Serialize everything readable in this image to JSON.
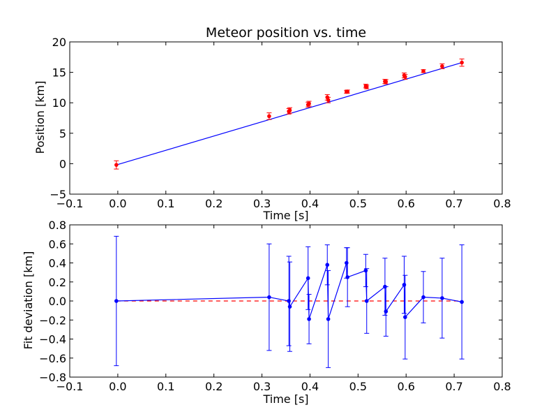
{
  "chart_data": [
    {
      "type": "line",
      "title": "Meteor position vs. time",
      "xlabel": "Time [s]",
      "ylabel": "Position [km]",
      "xlim": [
        -0.1,
        0.8
      ],
      "ylim": [
        -5,
        20
      ],
      "xticks": [
        "−0.1",
        "0.0",
        "0.1",
        "0.2",
        "0.3",
        "0.4",
        "0.5",
        "0.6",
        "0.7",
        "0.8"
      ],
      "xtick_values": [
        -0.1,
        0.0,
        0.1,
        0.2,
        0.3,
        0.4,
        0.5,
        0.6,
        0.7,
        0.8
      ],
      "yticks": [
        "−5",
        "0",
        "5",
        "10",
        "15",
        "20"
      ],
      "ytick_values": [
        -5,
        0,
        5,
        10,
        15,
        20
      ],
      "grid": false,
      "series": [
        {
          "kind": "fit_line",
          "color": "#0000ff",
          "points": [
            [
              -0.003,
              -0.2
            ],
            [
              0.716,
              16.6
            ]
          ]
        },
        {
          "kind": "errorbar",
          "color": "#ff0000",
          "x": [
            -0.003,
            0.315,
            0.356,
            0.358,
            0.396,
            0.398,
            0.436,
            0.438,
            0.476,
            0.478,
            0.516,
            0.518,
            0.556,
            0.558,
            0.596,
            0.598,
            0.636,
            0.675,
            0.716
          ],
          "y": [
            -0.2,
            7.8,
            8.6,
            8.75,
            9.7,
            9.85,
            10.9,
            10.45,
            11.8,
            11.85,
            12.75,
            12.6,
            13.5,
            13.45,
            14.5,
            14.25,
            15.2,
            16.0,
            16.6
          ],
          "err": [
            0.68,
            0.55,
            0.45,
            0.45,
            0.4,
            0.4,
            0.45,
            0.45,
            0.25,
            0.25,
            0.3,
            0.3,
            0.35,
            0.35,
            0.4,
            0.4,
            0.25,
            0.4,
            0.6
          ]
        }
      ]
    },
    {
      "type": "line",
      "title": "",
      "xlabel": "Time [s]",
      "ylabel": "Fit deviation [km]",
      "xlim": [
        -0.1,
        0.8
      ],
      "ylim": [
        -0.8,
        0.8
      ],
      "xticks": [
        "−0.1",
        "0.0",
        "0.1",
        "0.2",
        "0.3",
        "0.4",
        "0.5",
        "0.6",
        "0.7",
        "0.8"
      ],
      "xtick_values": [
        -0.1,
        0.0,
        0.1,
        0.2,
        0.3,
        0.4,
        0.5,
        0.6,
        0.7,
        0.8
      ],
      "yticks": [
        "−0.8",
        "−0.6",
        "−0.4",
        "−0.2",
        "0.0",
        "0.2",
        "0.4",
        "0.6",
        "0.8"
      ],
      "ytick_values": [
        -0.8,
        -0.6,
        -0.4,
        -0.2,
        0.0,
        0.2,
        0.4,
        0.6,
        0.8
      ],
      "grid": false,
      "zero_line": {
        "y": 0,
        "color": "#ff0000",
        "style": "dashed"
      },
      "series": [
        {
          "kind": "errorbar_line",
          "color": "#0000ff",
          "x": [
            -0.003,
            0.315,
            0.356,
            0.358,
            0.396,
            0.398,
            0.436,
            0.438,
            0.476,
            0.478,
            0.516,
            0.518,
            0.556,
            0.558,
            0.596,
            0.598,
            0.636,
            0.675,
            0.716
          ],
          "y": [
            0.0,
            0.04,
            0.0,
            -0.06,
            0.24,
            -0.19,
            0.38,
            -0.19,
            0.4,
            0.25,
            0.32,
            0.0,
            0.15,
            -0.11,
            0.17,
            -0.17,
            0.04,
            0.03,
            -0.01
          ],
          "err": [
            0.68,
            0.56,
            0.47,
            0.47,
            0.33,
            0.26,
            0.21,
            0.51,
            0.16,
            0.31,
            0.17,
            0.34,
            0.3,
            0.26,
            0.3,
            0.44,
            0.27,
            0.42,
            0.6
          ]
        }
      ]
    }
  ]
}
